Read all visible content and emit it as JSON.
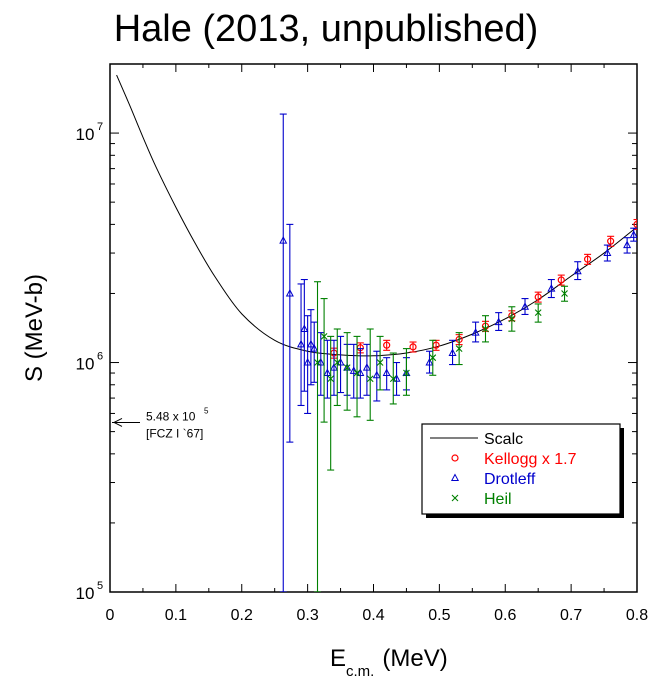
{
  "chart_data": {
    "type": "scatter",
    "title": "Hale (2013, unpublished)",
    "xlabel_main": "E",
    "xlabel_sub": "c.m.",
    "xlabel_unit": "(MeV)",
    "ylabel": "S (MeV-b)",
    "xlim": [
      0,
      0.8
    ],
    "ylim": [
      100000,
      20000000
    ],
    "yscale": "log",
    "x_ticks": [
      "0",
      "0.1",
      "0.2",
      "0.3",
      "0.4",
      "0.5",
      "0.6",
      "0.7",
      "0.8"
    ],
    "y_ticks": [
      {
        "value": 100000,
        "base": "10",
        "exp": "5"
      },
      {
        "value": 1000000,
        "base": "10",
        "exp": "6"
      },
      {
        "value": 10000000,
        "base": "10",
        "exp": "7"
      }
    ],
    "legend_position": "lower-right",
    "annotation": {
      "line1": "5.48 x 10",
      "line1_exp": "5",
      "line2": "[FCZ I `67]",
      "y_value": 548000
    },
    "series": [
      {
        "name": "Scalc",
        "kind": "line",
        "color": "#000000",
        "x": [
          0.01,
          0.03,
          0.05,
          0.07,
          0.1,
          0.13,
          0.16,
          0.2,
          0.25,
          0.3,
          0.35,
          0.4,
          0.45,
          0.5,
          0.55,
          0.6,
          0.65,
          0.7,
          0.75,
          0.8
        ],
        "y": [
          17900000,
          13200000,
          9600000,
          7100000,
          4750000,
          3280000,
          2350000,
          1630000,
          1250000,
          1120000,
          1080000,
          1070000,
          1100000,
          1180000,
          1330000,
          1550000,
          1880000,
          2380000,
          3000000,
          3900000
        ]
      },
      {
        "name": "Kellogg x 1.7",
        "kind": "markers",
        "marker": "circle",
        "color": "#ff0000",
        "x": [
          0.34,
          0.38,
          0.42,
          0.46,
          0.495,
          0.53,
          0.57,
          0.61,
          0.65,
          0.685,
          0.725,
          0.76,
          0.8
        ],
        "y": [
          1100000,
          1160000,
          1190000,
          1170000,
          1190000,
          1260000,
          1440000,
          1600000,
          1930000,
          2290000,
          2820000,
          3380000,
          4000000
        ],
        "err": [
          0.05,
          0.05,
          0.05,
          0.05,
          0.05,
          0.05,
          0.05,
          0.05,
          0.05,
          0.05,
          0.05,
          0.05,
          0.05
        ]
      },
      {
        "name": "Drotleff",
        "kind": "markers",
        "marker": "triangle",
        "color": "#0000cc",
        "x": [
          0.263,
          0.273,
          0.29,
          0.295,
          0.3,
          0.305,
          0.31,
          0.32,
          0.33,
          0.34,
          0.35,
          0.36,
          0.37,
          0.38,
          0.39,
          0.405,
          0.42,
          0.435,
          0.45,
          0.485,
          0.52,
          0.555,
          0.59,
          0.63,
          0.67,
          0.71,
          0.755,
          0.785,
          0.795
        ],
        "y": [
          3400000,
          2000000,
          1200000,
          1400000,
          1000000,
          1200000,
          1150000,
          1000000,
          900000,
          950000,
          1000000,
          950000,
          920000,
          900000,
          950000,
          880000,
          900000,
          850000,
          900000,
          1000000,
          1100000,
          1350000,
          1500000,
          1750000,
          2100000,
          2500000,
          3000000,
          3250000,
          3600000
        ],
        "err_up": [
          12100000,
          4000000,
          2200000,
          2300000,
          1600000,
          1700000,
          1500000,
          1350000,
          1250000,
          1250000,
          1300000,
          1200000,
          1200000,
          1150000,
          1200000,
          1120000,
          1050000,
          1000000,
          1050000,
          1120000,
          1250000,
          1500000,
          1650000,
          1900000,
          2300000,
          2750000,
          3250000,
          3500000,
          3850000
        ],
        "err_lo": [
          100000,
          450000,
          650000,
          750000,
          600000,
          800000,
          820000,
          720000,
          700000,
          720000,
          740000,
          720000,
          700000,
          700000,
          720000,
          680000,
          760000,
          720000,
          760000,
          900000,
          980000,
          1230000,
          1380000,
          1620000,
          1920000,
          2300000,
          2770000,
          3000000,
          3380000
        ]
      },
      {
        "name": "Heil",
        "kind": "markers",
        "marker": "x",
        "color": "#008000",
        "x": [
          0.315,
          0.325,
          0.335,
          0.345,
          0.36,
          0.375,
          0.395,
          0.41,
          0.43,
          0.45,
          0.49,
          0.53,
          0.57,
          0.61,
          0.65,
          0.69
        ],
        "y": [
          1000000,
          1300000,
          850000,
          1000000,
          950000,
          900000,
          850000,
          1000000,
          850000,
          900000,
          1050000,
          1150000,
          1400000,
          1550000,
          1650000,
          2000000
        ],
        "err_up": [
          2250000,
          1900000,
          1300000,
          1400000,
          1350000,
          1300000,
          1400000,
          1300000,
          1100000,
          1150000,
          1250000,
          1350000,
          1600000,
          1750000,
          1800000,
          2150000
        ],
        "err_lo": [
          100000,
          550000,
          340000,
          650000,
          620000,
          580000,
          560000,
          760000,
          660000,
          720000,
          880000,
          980000,
          1230000,
          1370000,
          1500000,
          1850000
        ]
      }
    ]
  }
}
